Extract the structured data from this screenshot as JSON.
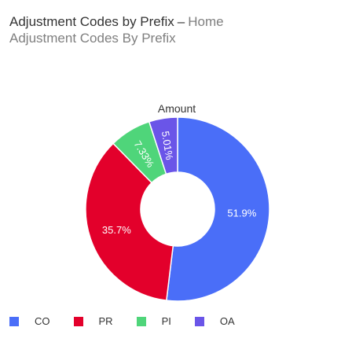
{
  "header": {
    "title": "Adjustment Codes by Prefix",
    "separator": "–",
    "context": "Home",
    "subtitle": "Adjustment Codes By Prefix"
  },
  "chart_data": {
    "type": "pie",
    "variant": "donut",
    "series_name": "Amount",
    "legend_position": "bottom-left",
    "slices": [
      {
        "label": "CO",
        "value": 51.9,
        "display": "51.9%",
        "color": "#4a6ef8"
      },
      {
        "label": "PR",
        "value": 35.7,
        "display": "35.7%",
        "color": "#e3002b"
      },
      {
        "label": "PI",
        "value": 7.33,
        "display": "7.33%",
        "color": "#4fd57a"
      },
      {
        "label": "OA",
        "value": 5.01,
        "display": "5.01%",
        "color": "#6a55e8"
      }
    ]
  }
}
